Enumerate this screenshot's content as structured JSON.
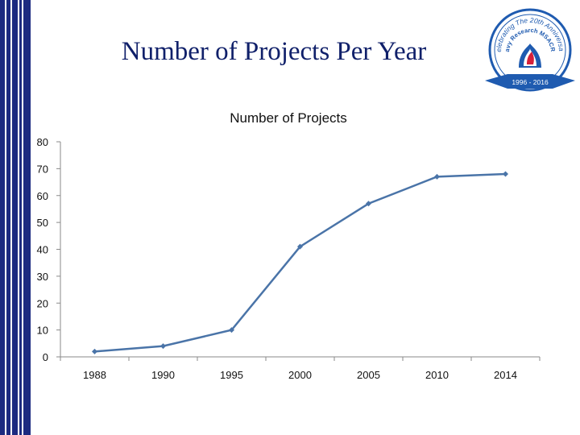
{
  "slide": {
    "title": "Number of Projects Per Year"
  },
  "logo": {
    "arc_text": "Celebrating The 20th Anniversary",
    "org_text": "Navy Research MSACRO",
    "years_text": "1996 - 2016",
    "color": "#1f5bb0"
  },
  "colors": {
    "sidebar": "#1c2a80",
    "line": "#4a74a8",
    "title": "#10206a"
  },
  "chart_data": {
    "type": "line",
    "title": "Number of Projects",
    "categories": [
      "1988",
      "1990",
      "1995",
      "2000",
      "2005",
      "2010",
      "2014"
    ],
    "series": [
      {
        "name": "Number of Projects",
        "values": [
          2,
          4,
          10,
          41,
          57,
          67,
          68
        ]
      }
    ],
    "ylim": [
      0,
      80
    ],
    "yticks": [
      0,
      10,
      20,
      30,
      40,
      50,
      60,
      70,
      80
    ],
    "grid": false,
    "xlabel": "",
    "ylabel": ""
  }
}
